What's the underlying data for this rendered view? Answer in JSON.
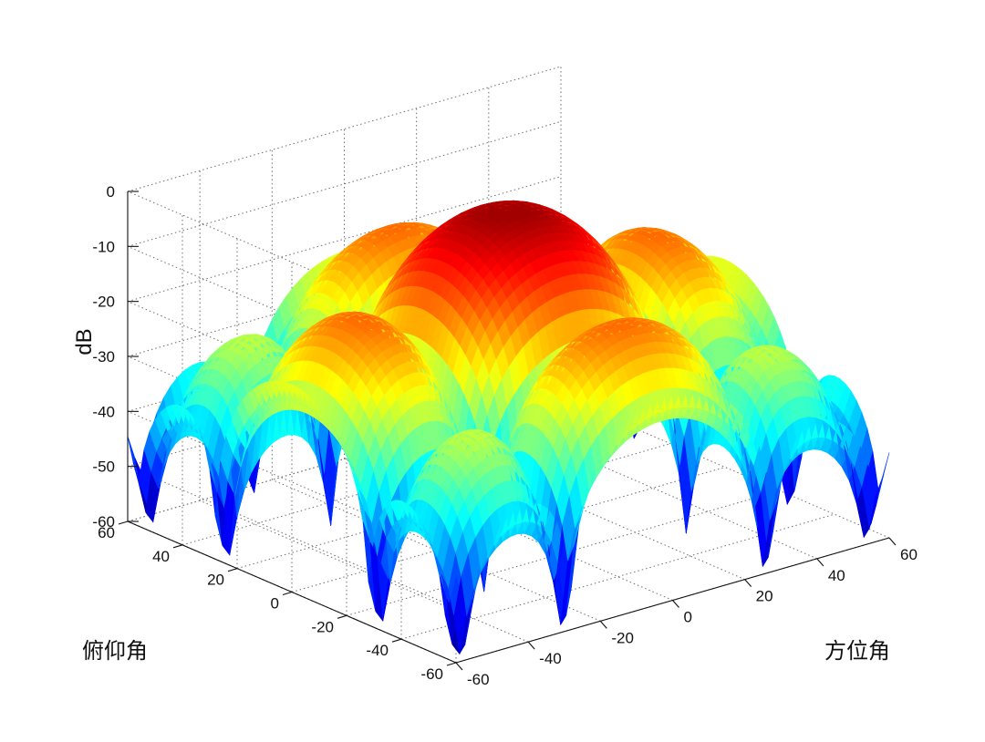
{
  "chart_data": {
    "type": "surface",
    "title": "",
    "zlabel": "dB",
    "xlabel": "方位角",
    "ylabel": "俯仰角",
    "x_range": [
      -60,
      60
    ],
    "y_range": [
      -60,
      60
    ],
    "z_range": [
      -60,
      0
    ],
    "x_ticks": [
      "-60",
      "-40",
      "-20",
      "0",
      "20",
      "40",
      "60"
    ],
    "y_ticks": [
      "-60",
      "-40",
      "-20",
      "0",
      "20",
      "40",
      "60"
    ],
    "z_ticks": [
      "0",
      "-10",
      "-20",
      "-30",
      "-40",
      "-50",
      "-60"
    ],
    "grid": true,
    "colormap": [
      "#00008f",
      "#0000ff",
      "#00ffff",
      "#ffff00",
      "#ff7f00",
      "#ff0000",
      "#800000"
    ],
    "surface": {
      "description_free": true,
      "main_lobe_peak_db": -2,
      "first_sidelobe_db": -15,
      "sidelobe_floor_db": -33,
      "null_depth_db": -60,
      "grid_samples": 61
    }
  }
}
